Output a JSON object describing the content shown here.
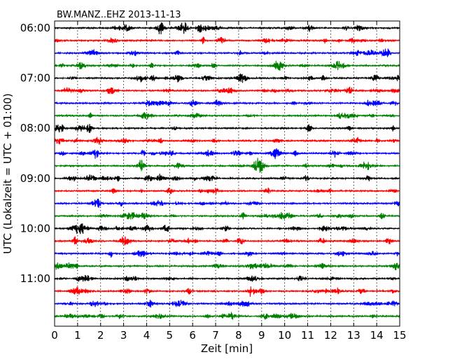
{
  "chart_data": {
    "type": "line",
    "title": "BW.MANZ..EHZ 2013-11-13",
    "xlabel": "Zeit  [min]",
    "ylabel": "UTC (Lokalzeit = UTC + 01:00)",
    "xlim": [
      0,
      15
    ],
    "x_ticks": [
      "0",
      "1",
      "2",
      "3",
      "4",
      "5",
      "6",
      "7",
      "8",
      "9",
      "10",
      "11",
      "12",
      "13",
      "14",
      "15"
    ],
    "y_tick_labels": [
      "06:00",
      "07:00",
      "08:00",
      "09:00",
      "10:00",
      "11:00"
    ],
    "grid_x": "dotted",
    "trace_start_times": [
      "06:00",
      "06:15",
      "06:30",
      "06:45",
      "07:00",
      "07:15",
      "07:30",
      "07:45",
      "08:00",
      "08:15",
      "08:30",
      "08:45",
      "09:00",
      "09:15",
      "09:30",
      "09:45",
      "10:00",
      "10:15",
      "10:30",
      "10:45",
      "11:00",
      "11:15",
      "11:30",
      "11:45"
    ],
    "trace_colors": [
      "#000000",
      "#ff0000",
      "#0000ff",
      "#008000"
    ]
  }
}
